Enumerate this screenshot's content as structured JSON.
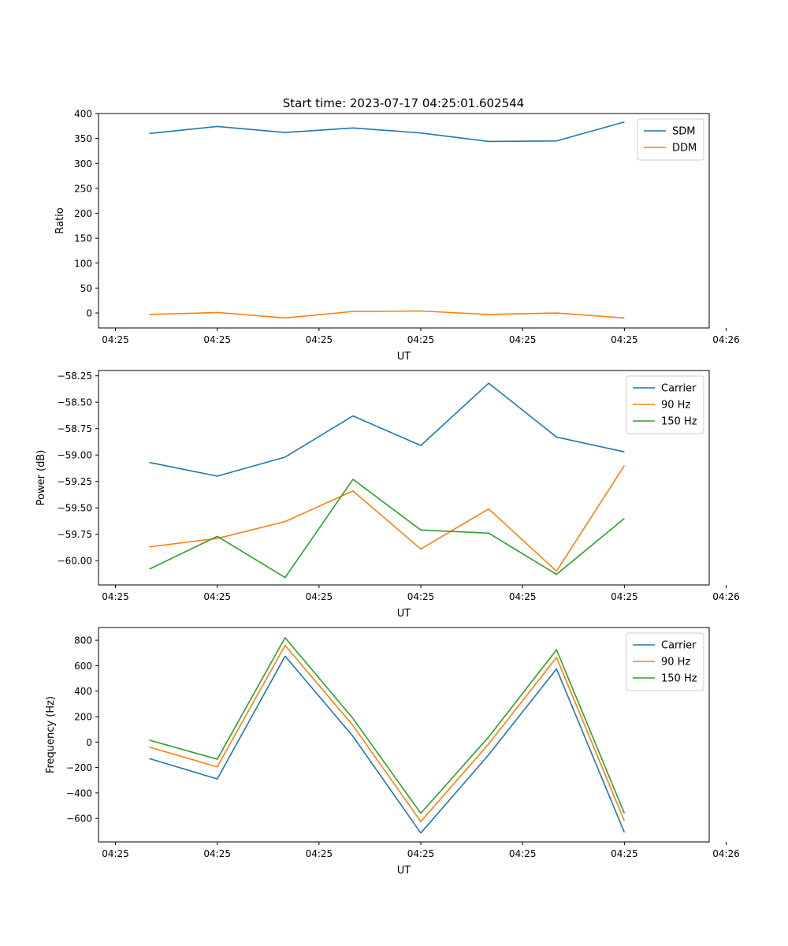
{
  "figure_title": "Start time: 2023-07-17 04:25:01.602544",
  "chart_data": [
    {
      "type": "line",
      "title": "Start time: 2023-07-17 04:25:01.602544",
      "xlabel": "UT",
      "ylabel": "Ratio",
      "xlim": [
        -0.75,
        8.25
      ],
      "ylim": [
        -30,
        400
      ],
      "x": [
        0,
        1,
        2,
        3,
        4,
        5,
        6,
        7
      ],
      "xtick_values": [
        -0.5,
        1,
        2.5,
        4,
        5.5,
        7,
        8.5
      ],
      "xtick_labels": [
        "04:25",
        "04:25",
        "04:25",
        "04:25",
        "04:25",
        "04:25",
        "04:26"
      ],
      "yticks": [
        0,
        50,
        100,
        150,
        200,
        250,
        300,
        350,
        400
      ],
      "ytick_labels": [
        "0",
        "50",
        "100",
        "150",
        "200",
        "250",
        "300",
        "350",
        "400"
      ],
      "legend": "top-right",
      "series": [
        {
          "name": "SDM",
          "color": "#1f77b4",
          "values": [
            360,
            374,
            362,
            371,
            361,
            344,
            345,
            383
          ]
        },
        {
          "name": "DDM",
          "color": "#ff7f0e",
          "values": [
            -3,
            1,
            -10,
            3,
            4,
            -3,
            0,
            -10
          ]
        }
      ]
    },
    {
      "type": "line",
      "title": "",
      "xlabel": "UT",
      "ylabel": "Power (dB)",
      "xlim": [
        -0.75,
        8.25
      ],
      "ylim": [
        -60.23,
        -58.2
      ],
      "x": [
        0,
        1,
        2,
        3,
        4,
        5,
        6,
        7
      ],
      "xtick_values": [
        -0.5,
        1,
        2.5,
        4,
        5.5,
        7,
        8.5
      ],
      "xtick_labels": [
        "04:25",
        "04:25",
        "04:25",
        "04:25",
        "04:25",
        "04:25",
        "04:26"
      ],
      "yticks": [
        -60.0,
        -59.75,
        -59.5,
        -59.25,
        -59.0,
        -58.75,
        -58.5,
        -58.25
      ],
      "ytick_labels": [
        "−60.00",
        "−59.75",
        "−59.50",
        "−59.25",
        "−59.00",
        "−58.75",
        "−58.50",
        "−58.25"
      ],
      "legend": "top-right",
      "series": [
        {
          "name": "Carrier",
          "color": "#1f77b4",
          "values": [
            -59.07,
            -59.2,
            -59.02,
            -58.63,
            -58.91,
            -58.32,
            -58.83,
            -58.97
          ]
        },
        {
          "name": "90 Hz",
          "color": "#ff7f0e",
          "values": [
            -59.87,
            -59.79,
            -59.63,
            -59.34,
            -59.89,
            -59.51,
            -60.1,
            -59.1
          ]
        },
        {
          "name": "150 Hz",
          "color": "#2ca02c",
          "values": [
            -60.08,
            -59.77,
            -60.16,
            -59.23,
            -59.71,
            -59.74,
            -60.13,
            -59.6
          ]
        }
      ]
    },
    {
      "type": "line",
      "title": "",
      "xlabel": "UT",
      "ylabel": "Frequency (Hz)",
      "xlim": [
        -0.75,
        8.25
      ],
      "ylim": [
        -785,
        900
      ],
      "x": [
        0,
        1,
        2,
        3,
        4,
        5,
        6,
        7
      ],
      "xtick_values": [
        -0.5,
        1,
        2.5,
        4,
        5.5,
        7,
        8.5
      ],
      "xtick_labels": [
        "04:25",
        "04:25",
        "04:25",
        "04:25",
        "04:25",
        "04:25",
        "04:26"
      ],
      "yticks": [
        -600,
        -400,
        -200,
        0,
        200,
        400,
        600,
        800
      ],
      "ytick_labels": [
        "−600",
        "−400",
        "−200",
        "0",
        "200",
        "400",
        "600",
        "800"
      ],
      "legend": "top-right",
      "series": [
        {
          "name": "Carrier",
          "color": "#1f77b4",
          "values": [
            -130,
            -290,
            675,
            45,
            -715,
            -100,
            575,
            -710
          ]
        },
        {
          "name": "90 Hz",
          "color": "#ff7f0e",
          "values": [
            -40,
            -195,
            760,
            130,
            -625,
            -15,
            665,
            -620
          ]
        },
        {
          "name": "150 Hz",
          "color": "#2ca02c",
          "values": [
            15,
            -135,
            820,
            185,
            -560,
            40,
            725,
            -560
          ]
        }
      ]
    }
  ]
}
